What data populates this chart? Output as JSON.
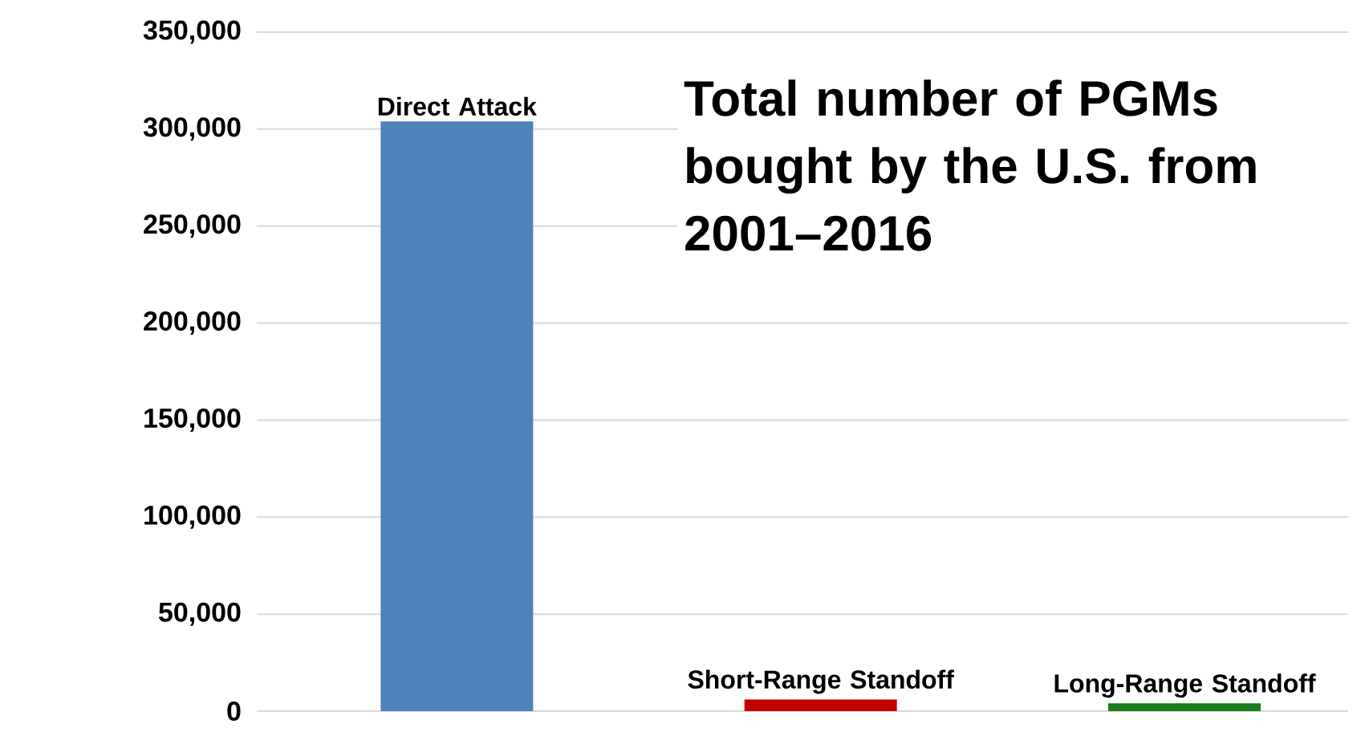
{
  "chart_data": {
    "type": "bar",
    "title": "Total number of PGMs bought by the U.S. from 2001–2016",
    "categories": [
      "Direct Attack",
      "Short-Range Standoff",
      "Long-Range Standoff"
    ],
    "values": [
      304000,
      6000,
      4000
    ],
    "colors": [
      "#4f81bd",
      "#c00000",
      "#1e7b1e"
    ],
    "ylim": [
      0,
      350000
    ],
    "yticks": [
      {
        "value": 0,
        "label": "0"
      },
      {
        "value": 50000,
        "label": "50,000"
      },
      {
        "value": 100000,
        "label": "100,000"
      },
      {
        "value": 150000,
        "label": "150,000"
      },
      {
        "value": 200000,
        "label": "200,000"
      },
      {
        "value": 250000,
        "label": "250,000"
      },
      {
        "value": 300000,
        "label": "300,000"
      },
      {
        "value": 350000,
        "label": "350,000"
      }
    ],
    "grid": "y",
    "tick_labels": "y"
  }
}
